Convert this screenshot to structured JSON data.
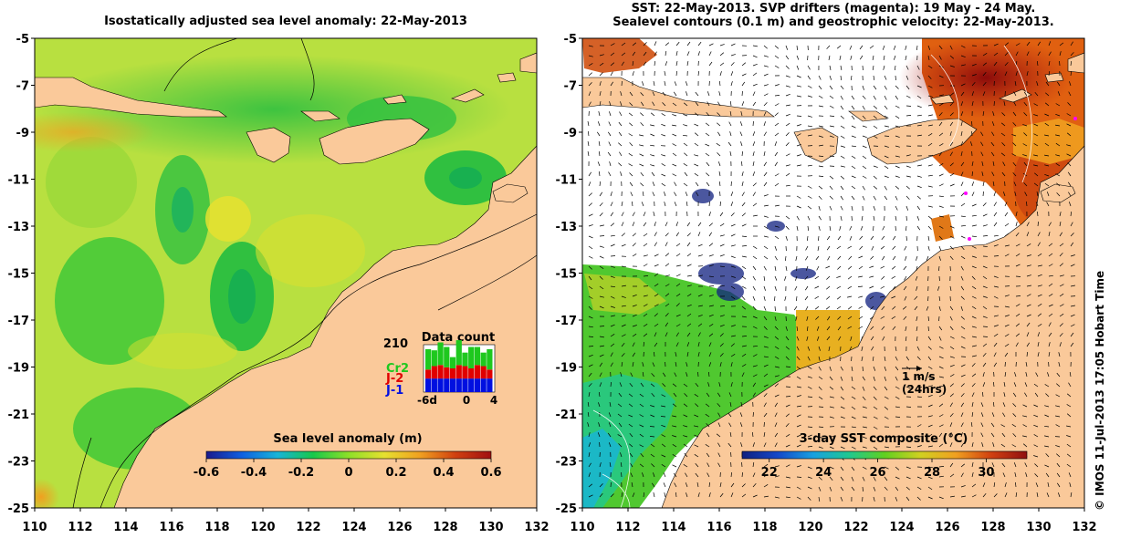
{
  "left_panel": {
    "title": "Isostatically adjusted sea level anomaly: 22-May-2013",
    "colorbar": {
      "label": "Sea level anomaly (m)",
      "ticks": [
        "-0.6",
        "-0.4",
        "-0.2",
        "0",
        "0.2",
        "0.4",
        "0.6"
      ],
      "range": [
        -0.6,
        0.6
      ]
    },
    "inset": {
      "title": "Data count",
      "max_label": "210",
      "legend": [
        {
          "name": "Cr2",
          "color": "#1ec81e"
        },
        {
          "name": "J-2",
          "color": "#e00000"
        },
        {
          "name": "J-1",
          "color": "#0010e0"
        }
      ],
      "x_ticks": [
        "-6d",
        "0",
        "4"
      ]
    }
  },
  "right_panel": {
    "title_line1": "SST: 22-May-2013. SVP drifters (magenta): 19 May - 24 May.",
    "title_line2": "Sealevel contours (0.1 m) and geostrophic velocity: 22-May-2013.",
    "colorbar": {
      "label": "3-day SST composite (°C)",
      "ticks": [
        "22",
        "24",
        "26",
        "28",
        "30"
      ],
      "range": [
        21,
        31.5
      ]
    },
    "scale_arrow": {
      "line1": "1 m/s",
      "line2": "(24hrs)"
    }
  },
  "axes": {
    "x_ticks": [
      "110",
      "112",
      "114",
      "116",
      "118",
      "120",
      "122",
      "124",
      "126",
      "128",
      "130",
      "132"
    ],
    "y_ticks": [
      "-5",
      "-7",
      "-9",
      "-11",
      "-13",
      "-15",
      "-17",
      "-19",
      "-21",
      "-23",
      "-25"
    ]
  },
  "credit": "© IMOS 11-Jul-2013 17:05 Hobart Time",
  "colors": {
    "land": "#fac99a",
    "sla_gradient": [
      "#1a1a8c",
      "#1060e0",
      "#18b4d8",
      "#18c84a",
      "#8ee028",
      "#e6e030",
      "#f0a020",
      "#d04010",
      "#a01010"
    ],
    "sst_gradient": [
      "#102080",
      "#1448c8",
      "#18a0e0",
      "#20c890",
      "#60d020",
      "#d0d020",
      "#f0a020",
      "#d04010",
      "#901010"
    ],
    "missing": "#ffffff"
  },
  "chart_data": [
    {
      "type": "heatmap",
      "title": "Isostatically adjusted sea level anomaly: 22-May-2013",
      "xlabel": "",
      "ylabel": "",
      "xlim": [
        110,
        132
      ],
      "ylim": [
        -25,
        -5
      ],
      "colorbar_label": "Sea level anomaly (m)",
      "color_range": [
        -0.6,
        0.6
      ],
      "inset_bar_chart": {
        "title": "Data count",
        "ymax": 210,
        "x_ticks": [
          "-6d",
          "0",
          "4"
        ],
        "series": [
          {
            "name": "J-1",
            "values": [
              60,
              60,
              60,
              60,
              60,
              60,
              60,
              60,
              60,
              60,
              60
            ]
          },
          {
            "name": "J-2",
            "values": [
              40,
              55,
              60,
              50,
              45,
              60,
              55,
              45,
              60,
              55,
              40
            ]
          },
          {
            "name": "Cr2",
            "values": [
              90,
              70,
              100,
              90,
              50,
              110,
              60,
              95,
              80,
              60,
              90
            ]
          }
        ]
      }
    },
    {
      "type": "heatmap",
      "title": "SST: 22-May-2013. SVP drifters (magenta): 19 May - 24 May. Sealevel contours (0.1 m) and geostrophic velocity: 22-May-2013.",
      "xlabel": "",
      "ylabel": "",
      "xlim": [
        110,
        132
      ],
      "ylim": [
        -25,
        -5
      ],
      "colorbar_label": "3-day SST composite (°C)",
      "color_range": [
        21,
        31.5
      ]
    }
  ]
}
